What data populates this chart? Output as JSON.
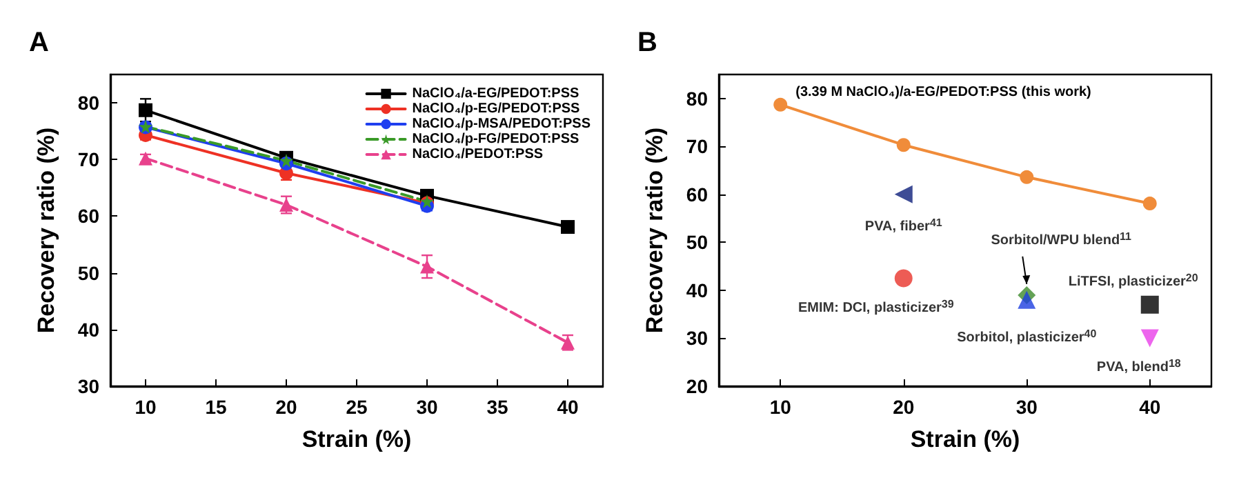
{
  "chart_data": [
    {
      "type": "line",
      "title": "A",
      "xlabel": "Strain (%)",
      "ylabel": "Recovery ratio (%)",
      "x": [
        10,
        20,
        30,
        40
      ],
      "xlim": [
        7.5,
        42.5
      ],
      "xticks": [
        10,
        15,
        20,
        25,
        30,
        35,
        40
      ],
      "ylim": [
        30,
        85
      ],
      "yticks": [
        30,
        40,
        50,
        60,
        70,
        80
      ],
      "grid": false,
      "legend": "top right",
      "series": [
        {
          "name": "NaClO₄/a-EG/PEDOT:PSS",
          "color": "#000000",
          "values": [
            78.7,
            70.3,
            63.6,
            58.1
          ],
          "errors": [
            2,
            0.5,
            0.5,
            0.8
          ],
          "marker": "square",
          "line_style": "solid"
        },
        {
          "name": "NaClO₄/p-EG/PEDOT:PSS",
          "color": "#ee3124",
          "x": [
            10,
            20,
            30
          ],
          "values": [
            74.3,
            67.6,
            62.3
          ],
          "errors": [
            0.8,
            1.2,
            0.6
          ],
          "marker": "circle",
          "line_style": "solid"
        },
        {
          "name": "NaClO₄/p-MSA/PEDOT:PSS",
          "color": "#1f3ff0",
          "x": [
            10,
            20,
            30
          ],
          "values": [
            75.7,
            69.3,
            61.8
          ],
          "errors": [
            0.6,
            0.6,
            0.8
          ],
          "marker": "circle",
          "line_style": "solid"
        },
        {
          "name": "NaClO₄/p-FG/PEDOT:PSS",
          "color": "#3a9a28",
          "x": [
            10,
            20,
            30
          ],
          "values": [
            75.8,
            69.8,
            62.6
          ],
          "marker": "star",
          "line_style": "dashed"
        },
        {
          "name": "NaClO₄/PEDOT:PSS",
          "color": "#e8418c",
          "values": [
            70.2,
            62.0,
            51.1,
            37.7
          ],
          "errors": [
            0.7,
            1.5,
            2,
            1.3
          ],
          "marker": "triangle",
          "line_style": "dashed"
        }
      ]
    },
    {
      "type": "scatter",
      "title": "B",
      "xlabel": "Strain (%)",
      "ylabel": "Recovery ratio (%)",
      "xlim": [
        5,
        45
      ],
      "xticks": [
        10,
        20,
        30,
        40
      ],
      "ylim": [
        20,
        85
      ],
      "yticks": [
        20,
        30,
        40,
        50,
        60,
        70,
        80
      ],
      "grid": false,
      "legend": false,
      "series": [
        {
          "type": "line",
          "name": "(3.39 M NaClO₄)/a-EG/PEDOT:PSS (this work)",
          "color": "#f08c3a",
          "x": [
            10,
            20,
            30,
            40
          ],
          "values": [
            78.7,
            70.3,
            63.6,
            58.1
          ],
          "marker": "circle"
        },
        {
          "name": "PVA, fiber$^{41}$",
          "color": "#0e1f7a",
          "x": [
            20
          ],
          "values": [
            60
          ],
          "marker": "triangle-left"
        },
        {
          "name": "EMIM: DCI, plasticizer$^{39}$",
          "color": "#e8332a",
          "x": [
            20
          ],
          "values": [
            42.5
          ],
          "marker": "circle"
        },
        {
          "name": "Sorbitol/WPU blend$^{11}$",
          "color": "#3d8b2c",
          "x": [
            30
          ],
          "values": [
            39
          ],
          "marker": "diamond"
        },
        {
          "name": "Sorbitol, plasticizer$^{40}$",
          "color": "#1d3ee0",
          "x": [
            30
          ],
          "values": [
            38
          ],
          "marker": "triangle"
        },
        {
          "name": "LiTFSI, plasticizer$^{20}$",
          "color": "#000000",
          "x": [
            40
          ],
          "values": [
            37
          ],
          "marker": "square"
        },
        {
          "name": "PVA, blend$^{18}$",
          "color": "#e93ee8",
          "x": [
            40
          ],
          "values": [
            30
          ],
          "marker": "triangle-down"
        }
      ]
    }
  ]
}
